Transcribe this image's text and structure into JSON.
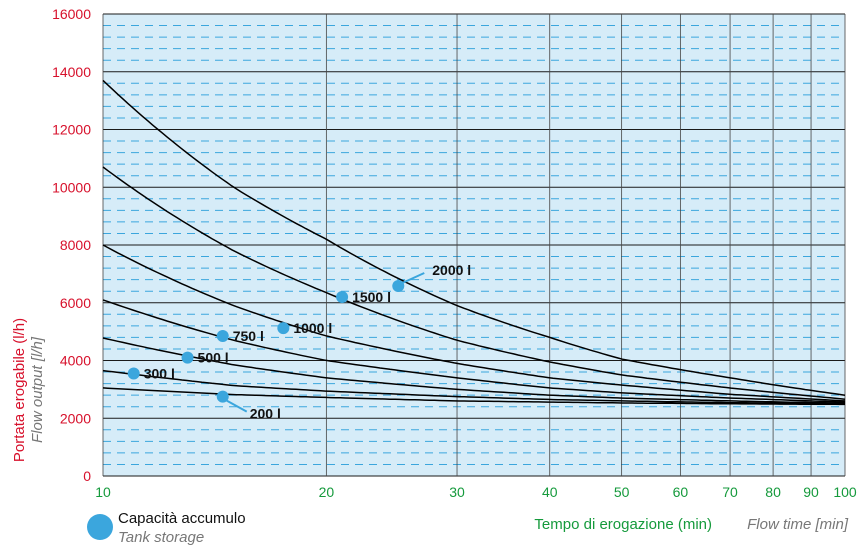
{
  "chart_data": {
    "type": "line",
    "x_scale": "log",
    "x_ticks": [
      10,
      20,
      30,
      40,
      50,
      60,
      70,
      80,
      90,
      100
    ],
    "y_ticks": [
      0,
      2000,
      4000,
      6000,
      8000,
      10000,
      12000,
      14000,
      16000
    ],
    "xlim": [
      10,
      100
    ],
    "ylim": [
      0,
      16000
    ],
    "grid": true,
    "ylabel": "Portata erogabile (l/h)",
    "ylabel_en": "Flow output [l/h]",
    "xlabel": "Tempo di erogazione (min)",
    "xlabel_en": "Flow time [min]",
    "legend": {
      "label": "Capacità accumulo",
      "label_en": "Tank storage"
    },
    "series": [
      {
        "name": "200 l",
        "values": [
          [
            10,
            3050
          ],
          [
            15,
            2820
          ],
          [
            20,
            2720
          ],
          [
            30,
            2600
          ],
          [
            40,
            2560
          ],
          [
            50,
            2530
          ],
          [
            70,
            2500
          ],
          [
            100,
            2480
          ]
        ]
      },
      {
        "name": "300 l",
        "values": [
          [
            10,
            3650
          ],
          [
            15,
            3130
          ],
          [
            20,
            2940
          ],
          [
            30,
            2750
          ],
          [
            40,
            2650
          ],
          [
            50,
            2600
          ],
          [
            70,
            2540
          ],
          [
            100,
            2500
          ]
        ]
      },
      {
        "name": "500 l",
        "values": [
          [
            10,
            4780
          ],
          [
            15,
            3850
          ],
          [
            20,
            3400
          ],
          [
            30,
            3000
          ],
          [
            40,
            2800
          ],
          [
            50,
            2700
          ],
          [
            70,
            2600
          ],
          [
            100,
            2520
          ]
        ]
      },
      {
        "name": "750 l",
        "values": [
          [
            10,
            6100
          ],
          [
            15,
            4700
          ],
          [
            20,
            4000
          ],
          [
            30,
            3400
          ],
          [
            40,
            3050
          ],
          [
            50,
            2880
          ],
          [
            70,
            2700
          ],
          [
            100,
            2560
          ]
        ]
      },
      {
        "name": "1000 l",
        "values": [
          [
            10,
            8000
          ],
          [
            15,
            5900
          ],
          [
            20,
            4850
          ],
          [
            30,
            3900
          ],
          [
            40,
            3400
          ],
          [
            50,
            3150
          ],
          [
            70,
            2830
          ],
          [
            100,
            2600
          ]
        ]
      },
      {
        "name": "1500 l",
        "values": [
          [
            10,
            10700
          ],
          [
            15,
            7800
          ],
          [
            20,
            6350
          ],
          [
            30,
            4700
          ],
          [
            40,
            3950
          ],
          [
            50,
            3500
          ],
          [
            70,
            3050
          ],
          [
            100,
            2660
          ]
        ]
      },
      {
        "name": "2000 l",
        "values": [
          [
            10,
            13700
          ],
          [
            15,
            10000
          ],
          [
            20,
            8200
          ],
          [
            30,
            5900
          ],
          [
            40,
            4800
          ],
          [
            50,
            4050
          ],
          [
            70,
            3400
          ],
          [
            100,
            2800
          ]
        ]
      }
    ],
    "markers": [
      {
        "label": "200 l",
        "x": 14.5,
        "y": 2750
      },
      {
        "label": "300 l",
        "x": 11,
        "y": 3550
      },
      {
        "label": "500 l",
        "x": 13,
        "y": 4100
      },
      {
        "label": "750 l",
        "x": 14.5,
        "y": 4850
      },
      {
        "label": "1000 l",
        "x": 17.5,
        "y": 5120
      },
      {
        "label": "1500 l",
        "x": 21,
        "y": 6200
      },
      {
        "label": "2000 l",
        "x": 25,
        "y": 6580
      }
    ]
  },
  "colors": {
    "plot_bg": "#d6ecf8",
    "grid_major": "#1a1a1a",
    "grid_minor": "#3ba6dd",
    "curve": "#000000",
    "marker": "#3ba6dd",
    "y_tick": "#d7102b",
    "x_tick": "#159a3c",
    "ylabel": "#d7102b",
    "xlabel": "#159a3c",
    "secondary": "#777777"
  }
}
